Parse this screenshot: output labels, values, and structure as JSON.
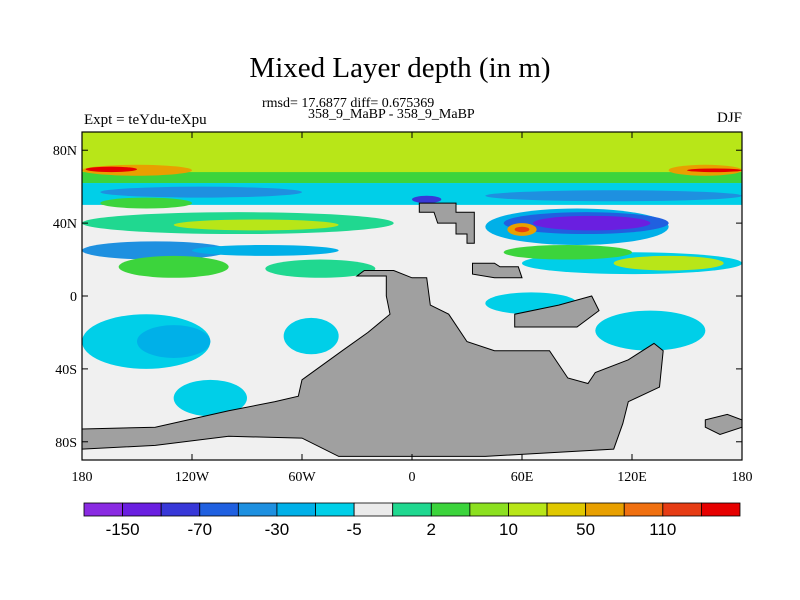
{
  "chart_data": {
    "type": "heatmap",
    "title": "Mixed Layer depth (in m)",
    "stats_text": "rmsd= 17.6877 diff= 0.675369",
    "subtitle": "358_9_MaBP - 358_9_MaBP",
    "left_label": "Expt = teYdu-teXpu",
    "right_label": "DJF",
    "x_ticks": [
      {
        "value": -180,
        "label": "180"
      },
      {
        "value": -120,
        "label": "120W"
      },
      {
        "value": -60,
        "label": "60W"
      },
      {
        "value": 0,
        "label": "0"
      },
      {
        "value": 60,
        "label": "60E"
      },
      {
        "value": 120,
        "label": "120E"
      },
      {
        "value": 180,
        "label": "180"
      }
    ],
    "y_ticks": [
      {
        "value": 80,
        "label": "80N"
      },
      {
        "value": 40,
        "label": "40N"
      },
      {
        "value": 0,
        "label": "0"
      },
      {
        "value": -40,
        "label": "40S"
      },
      {
        "value": -80,
        "label": "80S"
      }
    ],
    "xlim": [
      -180,
      180
    ],
    "ylim": [
      -90,
      90
    ],
    "colorbar": {
      "colors": [
        "#8a2be2",
        "#6a1fe0",
        "#3838d8",
        "#2060e0",
        "#1e90e0",
        "#00b0e8",
        "#00cfe8",
        "#ebebeb",
        "#20d890",
        "#3cd43c",
        "#8ce020",
        "#b8e618",
        "#e0c800",
        "#e8a000",
        "#f07010",
        "#e63c14",
        "#e60000"
      ],
      "tick_labels": [
        "-150",
        "-70",
        "-30",
        "-5",
        "2",
        "10",
        "50",
        "110"
      ]
    },
    "land_color": "#a0a0a0",
    "land_polygons": [
      {
        "name": "north-plateau",
        "points": [
          [
            4,
            51
          ],
          [
            24,
            51
          ],
          [
            24,
            46
          ],
          [
            34,
            46
          ],
          [
            34,
            29
          ],
          [
            30,
            29
          ],
          [
            30,
            34
          ],
          [
            24,
            34
          ],
          [
            24,
            40
          ],
          [
            14,
            40
          ],
          [
            12,
            46
          ],
          [
            4,
            46
          ]
        ]
      },
      {
        "name": "south-supercontinent",
        "points": [
          [
            -30,
            11
          ],
          [
            -14,
            11
          ],
          [
            -14,
            0
          ],
          [
            -12,
            -10
          ],
          [
            -24,
            -20
          ],
          [
            -38,
            -30
          ],
          [
            -60,
            -46
          ],
          [
            -62,
            -55
          ],
          [
            -75,
            -58
          ],
          [
            -100,
            -63
          ],
          [
            -140,
            -72
          ],
          [
            -180,
            -73
          ],
          [
            -180,
            -84
          ],
          [
            -140,
            -82
          ],
          [
            -100,
            -77
          ],
          [
            -60,
            -78
          ],
          [
            -40,
            -88
          ],
          [
            40,
            -88
          ],
          [
            110,
            -84
          ],
          [
            115,
            -70
          ],
          [
            118,
            -58
          ],
          [
            135,
            -50
          ],
          [
            137,
            -30
          ],
          [
            132,
            -26
          ],
          [
            118,
            -35
          ],
          [
            100,
            -42
          ],
          [
            96,
            -48
          ],
          [
            85,
            -45
          ],
          [
            75,
            -30
          ],
          [
            45,
            -30
          ],
          [
            30,
            -25
          ],
          [
            20,
            -10
          ],
          [
            10,
            -5
          ],
          [
            8,
            10
          ],
          [
            0,
            10
          ],
          [
            -10,
            14
          ],
          [
            -26,
            14
          ]
        ]
      },
      {
        "name": "east-arm",
        "points": [
          [
            56,
            -17
          ],
          [
            90,
            -17
          ],
          [
            102,
            -8
          ],
          [
            98,
            0
          ],
          [
            80,
            -5
          ],
          [
            56,
            -10
          ]
        ]
      },
      {
        "name": "small-island",
        "points": [
          [
            33,
            18
          ],
          [
            45,
            18
          ],
          [
            48,
            16
          ],
          [
            58,
            16
          ],
          [
            60,
            10
          ],
          [
            45,
            10
          ],
          [
            33,
            12
          ]
        ]
      },
      {
        "name": "southeast-isle",
        "points": [
          [
            160,
            -68
          ],
          [
            172,
            -65
          ],
          [
            180,
            -68
          ],
          [
            180,
            -72
          ],
          [
            168,
            -76
          ],
          [
            160,
            -72
          ]
        ]
      }
    ],
    "data_patches": [
      {
        "color": "#f0f0f0",
        "x": [
          -180,
          180
        ],
        "y": [
          -90,
          90
        ]
      },
      {
        "color": "#b8e618",
        "x": [
          -180,
          180
        ],
        "y": [
          64,
          90
        ]
      },
      {
        "color": "#3cd43c",
        "x": [
          -180,
          180
        ],
        "y": [
          62,
          68
        ]
      },
      {
        "color": "#e8a000",
        "x": [
          -180,
          -120
        ],
        "y": [
          66,
          72
        ]
      },
      {
        "color": "#e60000",
        "x": [
          -178,
          -150
        ],
        "y": [
          68,
          71
        ]
      },
      {
        "color": "#e8a000",
        "x": [
          140,
          180
        ],
        "y": [
          66,
          72
        ]
      },
      {
        "color": "#e60000",
        "x": [
          150,
          180
        ],
        "y": [
          68,
          70
        ]
      },
      {
        "color": "#00cfe8",
        "x": [
          -180,
          180
        ],
        "y": [
          50,
          62
        ]
      },
      {
        "color": "#1e90e0",
        "x": [
          -170,
          -60
        ],
        "y": [
          54,
          60
        ]
      },
      {
        "color": "#1e90e0",
        "x": [
          40,
          180
        ],
        "y": [
          52,
          58
        ]
      },
      {
        "color": "#3cd43c",
        "x": [
          -170,
          -120
        ],
        "y": [
          48,
          54
        ]
      },
      {
        "color": "#20d890",
        "x": [
          -180,
          -10
        ],
        "y": [
          34,
          46
        ]
      },
      {
        "color": "#b8e618",
        "x": [
          -130,
          -40
        ],
        "y": [
          36,
          42
        ]
      },
      {
        "color": "#1e90e0",
        "x": [
          -180,
          -100
        ],
        "y": [
          20,
          30
        ]
      },
      {
        "color": "#3cd43c",
        "x": [
          -160,
          -100
        ],
        "y": [
          10,
          22
        ]
      },
      {
        "color": "#20d890",
        "x": [
          -80,
          -20
        ],
        "y": [
          10,
          20
        ]
      },
      {
        "color": "#00b0e8",
        "x": [
          -120,
          -40
        ],
        "y": [
          22,
          28
        ]
      },
      {
        "color": "#00cfe8",
        "x": [
          60,
          180
        ],
        "y": [
          12,
          24
        ]
      },
      {
        "color": "#b8e618",
        "x": [
          110,
          170
        ],
        "y": [
          14,
          22
        ]
      },
      {
        "color": "#3cd43c",
        "x": [
          50,
          120
        ],
        "y": [
          20,
          28
        ]
      },
      {
        "color": "#00b0e8",
        "x": [
          40,
          140
        ],
        "y": [
          28,
          48
        ]
      },
      {
        "color": "#2060e0",
        "x": [
          50,
          140
        ],
        "y": [
          34,
          46
        ]
      },
      {
        "color": "#6a1fe0",
        "x": [
          66,
          130
        ],
        "y": [
          36,
          44
        ]
      },
      {
        "color": "#e8a000",
        "x": [
          52,
          68
        ],
        "y": [
          33,
          40
        ]
      },
      {
        "color": "#e63c14",
        "x": [
          56,
          64
        ],
        "y": [
          35,
          38
        ]
      },
      {
        "color": "#3838d8",
        "x": [
          0,
          16
        ],
        "y": [
          51,
          55
        ]
      },
      {
        "color": "#00cfe8",
        "x": [
          -180,
          -110
        ],
        "y": [
          -40,
          -10
        ]
      },
      {
        "color": "#00b0e8",
        "x": [
          -150,
          -110
        ],
        "y": [
          -34,
          -16
        ]
      },
      {
        "color": "#00cfe8",
        "x": [
          -130,
          -90
        ],
        "y": [
          -66,
          -46
        ]
      },
      {
        "color": "#00cfe8",
        "x": [
          -70,
          -40
        ],
        "y": [
          -32,
          -12
        ]
      },
      {
        "color": "#00cfe8",
        "x": [
          100,
          160
        ],
        "y": [
          -30,
          -8
        ]
      },
      {
        "color": "#00cfe8",
        "x": [
          40,
          90
        ],
        "y": [
          -10,
          2
        ]
      }
    ]
  }
}
